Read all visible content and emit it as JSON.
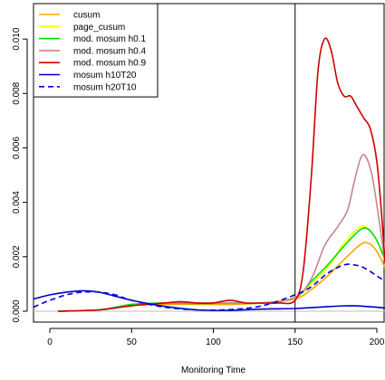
{
  "chart_data": {
    "type": "line",
    "title": "",
    "xlabel": "Monitoring Time",
    "ylabel": "",
    "xlim": [
      -10,
      205
    ],
    "ylim": [
      -0.0004,
      0.0113
    ],
    "x_ticks": [
      0,
      50,
      100,
      150,
      200
    ],
    "y_ticks": [
      0.0,
      0.002,
      0.004,
      0.006,
      0.008,
      0.01
    ],
    "y_tick_labels": [
      "0.000",
      "0.002",
      "0.004",
      "0.006",
      "0.008",
      "0.010"
    ],
    "grid": false,
    "legend_position": "top-left",
    "hline": {
      "y": 0,
      "color": "#bebebe"
    },
    "vline": {
      "x": 150,
      "color": "#000000"
    },
    "series": [
      {
        "name": "cusum",
        "color": "#FFA500",
        "dash": "solid",
        "points": [
          [
            5,
            0
          ],
          [
            30,
            5e-05
          ],
          [
            50,
            0.0002
          ],
          [
            70,
            0.00025
          ],
          [
            90,
            0.00025
          ],
          [
            110,
            0.00025
          ],
          [
            130,
            0.0003
          ],
          [
            150,
            0.00045
          ],
          [
            160,
            0.0008
          ],
          [
            170,
            0.0013
          ],
          [
            180,
            0.0019
          ],
          [
            190,
            0.00245
          ],
          [
            195,
            0.0025
          ],
          [
            200,
            0.0022
          ],
          [
            205,
            0.0016
          ]
        ]
      },
      {
        "name": "page_cusum",
        "color": "#FFFF00",
        "dash": "solid",
        "points": [
          [
            5,
            0
          ],
          [
            30,
            5e-05
          ],
          [
            50,
            0.0002
          ],
          [
            70,
            0.0003
          ],
          [
            90,
            0.0003
          ],
          [
            110,
            0.0003
          ],
          [
            130,
            0.0003
          ],
          [
            150,
            0.0005
          ],
          [
            160,
            0.001
          ],
          [
            170,
            0.0016
          ],
          [
            180,
            0.0025
          ],
          [
            190,
            0.0031
          ],
          [
            195,
            0.003
          ],
          [
            200,
            0.0026
          ],
          [
            205,
            0.0019
          ]
        ]
      },
      {
        "name": "mod. mosum h0.1",
        "color": "#00E000",
        "dash": "solid",
        "points": [
          [
            5,
            0
          ],
          [
            30,
            5e-05
          ],
          [
            50,
            0.00025
          ],
          [
            70,
            0.0003
          ],
          [
            90,
            0.00028
          ],
          [
            110,
            0.0003
          ],
          [
            130,
            0.0003
          ],
          [
            150,
            0.0005
          ],
          [
            160,
            0.0011
          ],
          [
            170,
            0.0017
          ],
          [
            180,
            0.0024
          ],
          [
            190,
            0.003
          ],
          [
            195,
            0.003
          ],
          [
            200,
            0.0026
          ],
          [
            205,
            0.0019
          ]
        ]
      },
      {
        "name": "mod. mosum h0.4",
        "color": "#C8858D",
        "dash": "solid",
        "points": [
          [
            5,
            0
          ],
          [
            30,
            5e-05
          ],
          [
            50,
            0.0002
          ],
          [
            70,
            0.0003
          ],
          [
            90,
            0.0003
          ],
          [
            110,
            0.0003
          ],
          [
            130,
            0.0003
          ],
          [
            150,
            0.0005
          ],
          [
            160,
            0.0012
          ],
          [
            168,
            0.0024
          ],
          [
            176,
            0.0031
          ],
          [
            182,
            0.0037
          ],
          [
            186,
            0.0047
          ],
          [
            190,
            0.0056
          ],
          [
            193,
            0.0057
          ],
          [
            197,
            0.005
          ],
          [
            201,
            0.0035
          ],
          [
            205,
            0.0018
          ]
        ]
      },
      {
        "name": "mod. mosum h0.9",
        "color": "#D00000",
        "dash": "solid",
        "points": [
          [
            5,
            0
          ],
          [
            30,
            5e-05
          ],
          [
            50,
            0.0002
          ],
          [
            70,
            0.0003
          ],
          [
            80,
            0.00035
          ],
          [
            90,
            0.0003
          ],
          [
            100,
            0.0003
          ],
          [
            110,
            0.0004
          ],
          [
            120,
            0.0003
          ],
          [
            130,
            0.0003
          ],
          [
            140,
            0.0003
          ],
          [
            150,
            0.0004
          ],
          [
            155,
            0.0015
          ],
          [
            160,
            0.005
          ],
          [
            164,
            0.0088
          ],
          [
            168,
            0.01
          ],
          [
            172,
            0.0096
          ],
          [
            176,
            0.0084
          ],
          [
            180,
            0.0079
          ],
          [
            184,
            0.0079
          ],
          [
            188,
            0.0075
          ],
          [
            192,
            0.0071
          ],
          [
            196,
            0.0067
          ],
          [
            200,
            0.0055
          ],
          [
            203,
            0.0035
          ],
          [
            205,
            0.0018
          ]
        ]
      },
      {
        "name": "mosum h10T20",
        "color": "#0000C0",
        "dash": "solid",
        "points": [
          [
            -10,
            0.00045
          ],
          [
            0,
            0.0006
          ],
          [
            10,
            0.0007
          ],
          [
            20,
            0.00075
          ],
          [
            30,
            0.0007
          ],
          [
            50,
            0.0004
          ],
          [
            70,
            0.00018
          ],
          [
            90,
            5e-05
          ],
          [
            110,
            3e-05
          ],
          [
            130,
            8e-05
          ],
          [
            150,
            0.0001
          ],
          [
            170,
            0.00017
          ],
          [
            185,
            0.0002
          ],
          [
            195,
            0.00017
          ],
          [
            205,
            0.00012
          ]
        ]
      },
      {
        "name": "mosum h20T10",
        "color": "#0000E0",
        "dash": "dashed",
        "points": [
          [
            -10,
            0.00015
          ],
          [
            0,
            0.0004
          ],
          [
            10,
            0.0006
          ],
          [
            20,
            0.0007
          ],
          [
            30,
            0.0007
          ],
          [
            40,
            0.0006
          ],
          [
            50,
            0.0004
          ],
          [
            70,
            0.00015
          ],
          [
            90,
            5e-05
          ],
          [
            110,
            6e-05
          ],
          [
            130,
            0.0002
          ],
          [
            150,
            0.0006
          ],
          [
            160,
            0.0009
          ],
          [
            170,
            0.0014
          ],
          [
            180,
            0.0017
          ],
          [
            186,
            0.0017
          ],
          [
            192,
            0.0016
          ],
          [
            200,
            0.0013
          ],
          [
            205,
            0.0011
          ]
        ]
      }
    ]
  }
}
